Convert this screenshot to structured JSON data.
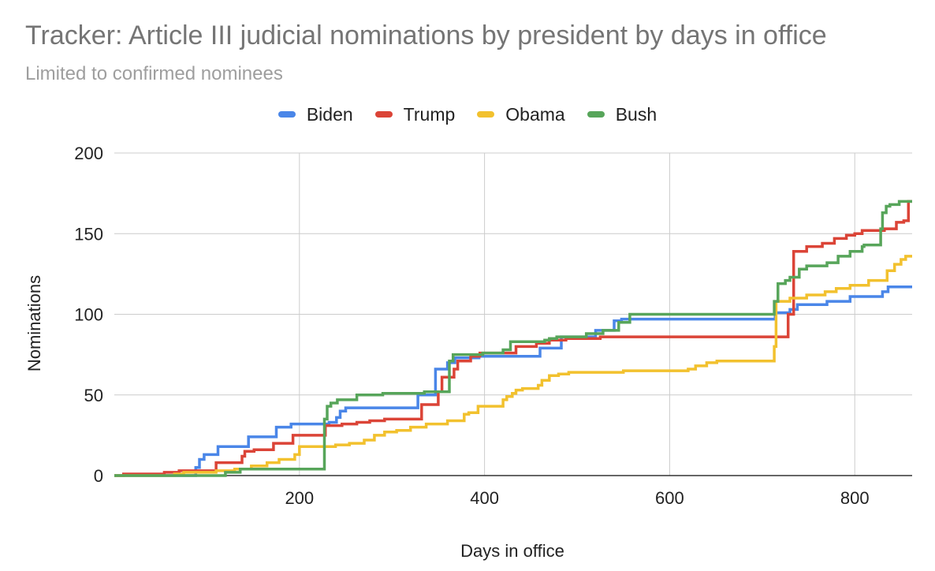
{
  "chart_data": {
    "type": "line",
    "title": "Tracker: Article III judicial nominations by president by days in office",
    "subtitle": "Limited to confirmed nominees",
    "xlabel": "Days in office",
    "ylabel": "Nominations",
    "xlim": [
      0,
      862
    ],
    "ylim": [
      0,
      200
    ],
    "x_ticks": [
      200,
      400,
      600,
      800
    ],
    "y_ticks": [
      0,
      50,
      100,
      150,
      200
    ],
    "grid": true,
    "legend_position": "top",
    "step": true,
    "series": [
      {
        "name": "Biden",
        "color": "#4a86e8",
        "points": [
          [
            0,
            0
          ],
          [
            88,
            0
          ],
          [
            88,
            5
          ],
          [
            92,
            5
          ],
          [
            92,
            10
          ],
          [
            97,
            10
          ],
          [
            97,
            13
          ],
          [
            112,
            13
          ],
          [
            112,
            18
          ],
          [
            145,
            18
          ],
          [
            145,
            24
          ],
          [
            175,
            24
          ],
          [
            175,
            30
          ],
          [
            191,
            30
          ],
          [
            191,
            32
          ],
          [
            232,
            32
          ],
          [
            232,
            33
          ],
          [
            240,
            33
          ],
          [
            240,
            36
          ],
          [
            244,
            36
          ],
          [
            244,
            40
          ],
          [
            250,
            40
          ],
          [
            250,
            42
          ],
          [
            328,
            42
          ],
          [
            328,
            50
          ],
          [
            347,
            50
          ],
          [
            347,
            66
          ],
          [
            360,
            66
          ],
          [
            360,
            70
          ],
          [
            368,
            70
          ],
          [
            368,
            73
          ],
          [
            394,
            73
          ],
          [
            394,
            74
          ],
          [
            460,
            74
          ],
          [
            460,
            79
          ],
          [
            483,
            79
          ],
          [
            483,
            86
          ],
          [
            520,
            86
          ],
          [
            520,
            90
          ],
          [
            540,
            90
          ],
          [
            540,
            96
          ],
          [
            548,
            96
          ],
          [
            548,
            97
          ],
          [
            714,
            97
          ],
          [
            714,
            101
          ],
          [
            730,
            101
          ],
          [
            730,
            103
          ],
          [
            738,
            103
          ],
          [
            738,
            106
          ],
          [
            770,
            106
          ],
          [
            770,
            108
          ],
          [
            795,
            108
          ],
          [
            795,
            111
          ],
          [
            830,
            111
          ],
          [
            830,
            114
          ],
          [
            836,
            114
          ],
          [
            836,
            117
          ],
          [
            862,
            117
          ]
        ]
      },
      {
        "name": "Trump",
        "color": "#db4437",
        "points": [
          [
            0,
            0
          ],
          [
            10,
            0
          ],
          [
            10,
            1
          ],
          [
            54,
            1
          ],
          [
            54,
            2
          ],
          [
            70,
            2
          ],
          [
            70,
            3
          ],
          [
            110,
            3
          ],
          [
            110,
            8
          ],
          [
            138,
            8
          ],
          [
            138,
            12
          ],
          [
            141,
            12
          ],
          [
            141,
            15
          ],
          [
            151,
            15
          ],
          [
            151,
            16
          ],
          [
            172,
            16
          ],
          [
            172,
            20
          ],
          [
            193,
            20
          ],
          [
            193,
            25
          ],
          [
            228,
            25
          ],
          [
            228,
            31
          ],
          [
            246,
            31
          ],
          [
            246,
            32
          ],
          [
            262,
            32
          ],
          [
            262,
            33
          ],
          [
            276,
            33
          ],
          [
            276,
            34
          ],
          [
            292,
            34
          ],
          [
            292,
            35
          ],
          [
            332,
            35
          ],
          [
            332,
            44
          ],
          [
            350,
            44
          ],
          [
            350,
            52
          ],
          [
            354,
            52
          ],
          [
            354,
            61
          ],
          [
            367,
            61
          ],
          [
            367,
            66
          ],
          [
            371,
            66
          ],
          [
            371,
            71
          ],
          [
            385,
            71
          ],
          [
            385,
            74
          ],
          [
            395,
            74
          ],
          [
            395,
            76
          ],
          [
            434,
            76
          ],
          [
            434,
            80
          ],
          [
            456,
            80
          ],
          [
            456,
            82
          ],
          [
            470,
            82
          ],
          [
            470,
            84
          ],
          [
            488,
            84
          ],
          [
            488,
            85
          ],
          [
            525,
            85
          ],
          [
            525,
            86
          ],
          [
            713,
            86
          ],
          [
            713,
            86
          ],
          [
            728,
            86
          ],
          [
            728,
            100
          ],
          [
            734,
            100
          ],
          [
            734,
            139
          ],
          [
            748,
            139
          ],
          [
            748,
            142
          ],
          [
            765,
            142
          ],
          [
            765,
            144
          ],
          [
            778,
            144
          ],
          [
            778,
            147
          ],
          [
            791,
            147
          ],
          [
            791,
            149
          ],
          [
            800,
            149
          ],
          [
            800,
            150
          ],
          [
            808,
            150
          ],
          [
            808,
            152
          ],
          [
            832,
            152
          ],
          [
            832,
            153
          ],
          [
            845,
            153
          ],
          [
            845,
            157
          ],
          [
            853,
            157
          ],
          [
            853,
            158
          ],
          [
            858,
            158
          ],
          [
            858,
            170
          ],
          [
            862,
            170
          ]
        ]
      },
      {
        "name": "Obama",
        "color": "#f2c12e",
        "points": [
          [
            0,
            0
          ],
          [
            65,
            0
          ],
          [
            65,
            1
          ],
          [
            75,
            1
          ],
          [
            75,
            2
          ],
          [
            110,
            2
          ],
          [
            110,
            3
          ],
          [
            130,
            3
          ],
          [
            130,
            4
          ],
          [
            148,
            4
          ],
          [
            148,
            6
          ],
          [
            165,
            6
          ],
          [
            165,
            8
          ],
          [
            178,
            8
          ],
          [
            178,
            10
          ],
          [
            195,
            10
          ],
          [
            195,
            13
          ],
          [
            200,
            13
          ],
          [
            200,
            18
          ],
          [
            239,
            18
          ],
          [
            239,
            19
          ],
          [
            254,
            19
          ],
          [
            254,
            20
          ],
          [
            270,
            20
          ],
          [
            270,
            22
          ],
          [
            281,
            22
          ],
          [
            281,
            25
          ],
          [
            292,
            25
          ],
          [
            292,
            27
          ],
          [
            305,
            27
          ],
          [
            305,
            28
          ],
          [
            320,
            28
          ],
          [
            320,
            30
          ],
          [
            337,
            30
          ],
          [
            337,
            32
          ],
          [
            360,
            32
          ],
          [
            360,
            34
          ],
          [
            378,
            34
          ],
          [
            378,
            38
          ],
          [
            383,
            38
          ],
          [
            383,
            39
          ],
          [
            393,
            39
          ],
          [
            393,
            43
          ],
          [
            420,
            43
          ],
          [
            420,
            47
          ],
          [
            424,
            47
          ],
          [
            424,
            49
          ],
          [
            430,
            49
          ],
          [
            430,
            51
          ],
          [
            434,
            51
          ],
          [
            434,
            53
          ],
          [
            441,
            53
          ],
          [
            441,
            54
          ],
          [
            458,
            54
          ],
          [
            458,
            56
          ],
          [
            462,
            56
          ],
          [
            462,
            59
          ],
          [
            470,
            59
          ],
          [
            470,
            62
          ],
          [
            480,
            62
          ],
          [
            480,
            63
          ],
          [
            491,
            63
          ],
          [
            491,
            64
          ],
          [
            550,
            64
          ],
          [
            550,
            65
          ],
          [
            620,
            65
          ],
          [
            620,
            66
          ],
          [
            628,
            66
          ],
          [
            628,
            68
          ],
          [
            640,
            68
          ],
          [
            640,
            70
          ],
          [
            651,
            70
          ],
          [
            651,
            71
          ],
          [
            713,
            71
          ],
          [
            713,
            80
          ],
          [
            715,
            80
          ],
          [
            715,
            108
          ],
          [
            730,
            108
          ],
          [
            730,
            110
          ],
          [
            748,
            110
          ],
          [
            748,
            112
          ],
          [
            768,
            112
          ],
          [
            768,
            114
          ],
          [
            780,
            114
          ],
          [
            780,
            116
          ],
          [
            795,
            116
          ],
          [
            795,
            118
          ],
          [
            815,
            118
          ],
          [
            815,
            121
          ],
          [
            835,
            121
          ],
          [
            835,
            127
          ],
          [
            843,
            127
          ],
          [
            843,
            131
          ],
          [
            850,
            131
          ],
          [
            850,
            134
          ],
          [
            855,
            134
          ],
          [
            855,
            136
          ],
          [
            862,
            136
          ]
        ]
      },
      {
        "name": "Bush",
        "color": "#57a55a",
        "points": [
          [
            0,
            0
          ],
          [
            120,
            0
          ],
          [
            120,
            2
          ],
          [
            136,
            2
          ],
          [
            136,
            4
          ],
          [
            227,
            4
          ],
          [
            227,
            35
          ],
          [
            230,
            35
          ],
          [
            230,
            43
          ],
          [
            234,
            43
          ],
          [
            234,
            45
          ],
          [
            241,
            45
          ],
          [
            241,
            47
          ],
          [
            262,
            47
          ],
          [
            262,
            50
          ],
          [
            290,
            50
          ],
          [
            290,
            51
          ],
          [
            335,
            51
          ],
          [
            335,
            52
          ],
          [
            362,
            52
          ],
          [
            362,
            71
          ],
          [
            366,
            71
          ],
          [
            366,
            75
          ],
          [
            398,
            75
          ],
          [
            398,
            76
          ],
          [
            420,
            76
          ],
          [
            420,
            78
          ],
          [
            428,
            78
          ],
          [
            428,
            83
          ],
          [
            465,
            83
          ],
          [
            465,
            84
          ],
          [
            470,
            84
          ],
          [
            470,
            85
          ],
          [
            478,
            85
          ],
          [
            478,
            86
          ],
          [
            510,
            86
          ],
          [
            510,
            88
          ],
          [
            528,
            88
          ],
          [
            528,
            90
          ],
          [
            545,
            90
          ],
          [
            545,
            95
          ],
          [
            557,
            95
          ],
          [
            557,
            100
          ],
          [
            713,
            100
          ],
          [
            713,
            108
          ],
          [
            717,
            108
          ],
          [
            717,
            119
          ],
          [
            725,
            119
          ],
          [
            725,
            121
          ],
          [
            730,
            121
          ],
          [
            730,
            123
          ],
          [
            740,
            123
          ],
          [
            740,
            128
          ],
          [
            748,
            128
          ],
          [
            748,
            130
          ],
          [
            770,
            130
          ],
          [
            770,
            132
          ],
          [
            782,
            132
          ],
          [
            782,
            136
          ],
          [
            795,
            136
          ],
          [
            795,
            139
          ],
          [
            808,
            139
          ],
          [
            808,
            142
          ],
          [
            810,
            142
          ],
          [
            810,
            143
          ],
          [
            828,
            143
          ],
          [
            828,
            153
          ],
          [
            830,
            153
          ],
          [
            830,
            163
          ],
          [
            834,
            163
          ],
          [
            834,
            167
          ],
          [
            838,
            167
          ],
          [
            838,
            168
          ],
          [
            848,
            168
          ],
          [
            848,
            170
          ],
          [
            862,
            170
          ]
        ]
      }
    ]
  }
}
